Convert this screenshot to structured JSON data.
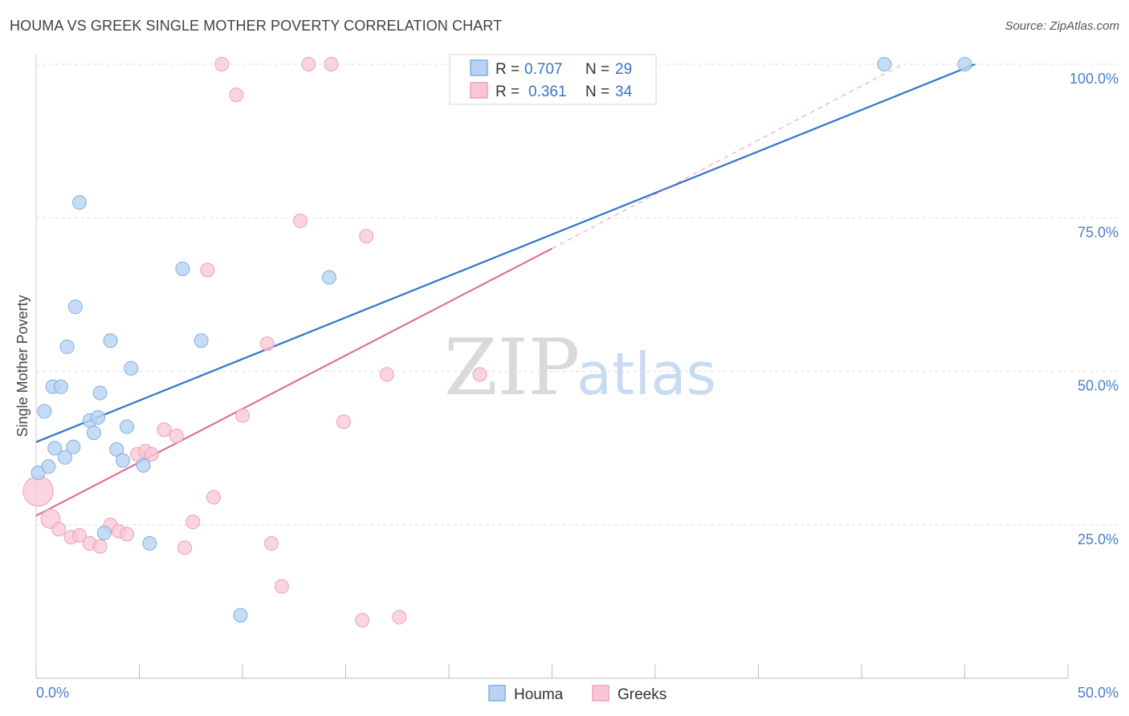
{
  "title": "HOUMA VS GREEK SINGLE MOTHER POVERTY CORRELATION CHART",
  "source": "Source: ZipAtlas.com",
  "watermark": {
    "zip": "ZIP",
    "atlas": "atlas"
  },
  "colors": {
    "houma_fill": "#b8d3f3",
    "houma_stroke": "#7eaee6",
    "houma_line": "#2f74cc",
    "greek_fill": "#f8c6d4",
    "greek_stroke": "#eea0b8",
    "greek_line": "#e0709a",
    "grid": "#dddddd",
    "tick_text": "#4a7fc9"
  },
  "legend": {
    "rows": [
      {
        "r_label": "R =",
        "r_value": "0.707",
        "n_label": "N =",
        "n_value": "29"
      },
      {
        "r_label": "R =",
        "r_value": "0.361",
        "n_label": "N =",
        "n_value": "34"
      }
    ]
  },
  "bottom_legend": [
    "Houma",
    "Greeks"
  ],
  "chart_data": {
    "type": "scatter",
    "title": "HOUMA VS GREEK SINGLE MOTHER POVERTY CORRELATION CHART",
    "xlabel": "",
    "ylabel": "Single Mother Poverty",
    "xlim": [
      0,
      50
    ],
    "ylim": [
      0,
      105
    ],
    "x_tick_labels": [
      "0.0%",
      "50.0%"
    ],
    "y_ticks": [
      25,
      50,
      75,
      100
    ],
    "y_tick_labels": [
      "25.0%",
      "50.0%",
      "75.0%",
      "100.0%"
    ],
    "grid": true,
    "series": [
      {
        "name": "Houma",
        "points": [
          [
            0.1,
            33.5
          ],
          [
            0.4,
            43.5
          ],
          [
            0.6,
            34.5
          ],
          [
            0.8,
            47.5
          ],
          [
            0.9,
            37.5
          ],
          [
            1.2,
            47.5
          ],
          [
            1.4,
            36.0
          ],
          [
            1.5,
            54.0
          ],
          [
            1.8,
            37.7
          ],
          [
            1.9,
            60.5
          ],
          [
            2.1,
            77.5
          ],
          [
            2.6,
            42.0
          ],
          [
            2.8,
            40.0
          ],
          [
            3.0,
            42.5
          ],
          [
            3.1,
            46.5
          ],
          [
            3.3,
            23.7
          ],
          [
            3.6,
            55.0
          ],
          [
            3.9,
            37.3
          ],
          [
            4.2,
            35.5
          ],
          [
            4.4,
            41.0
          ],
          [
            4.6,
            50.5
          ],
          [
            5.2,
            34.7
          ],
          [
            5.5,
            22.0
          ],
          [
            7.1,
            66.7
          ],
          [
            8.0,
            55.0
          ],
          [
            9.9,
            10.3
          ],
          [
            14.2,
            65.3
          ],
          [
            41.1,
            100.0
          ],
          [
            45.0,
            100.0
          ]
        ],
        "trend": {
          "x1": 0,
          "y1": 38.5,
          "x2": 45.5,
          "y2": 100.0
        }
      },
      {
        "name": "Greeks",
        "points": [
          [
            0.1,
            30.5
          ],
          [
            0.7,
            26.0
          ],
          [
            1.1,
            24.3
          ],
          [
            1.7,
            23.0
          ],
          [
            2.1,
            23.3
          ],
          [
            2.6,
            22.0
          ],
          [
            3.1,
            21.5
          ],
          [
            3.6,
            25.0
          ],
          [
            4.0,
            24.0
          ],
          [
            4.4,
            23.5
          ],
          [
            4.9,
            36.5
          ],
          [
            5.3,
            37.0
          ],
          [
            5.6,
            36.5
          ],
          [
            6.2,
            40.5
          ],
          [
            6.8,
            39.5
          ],
          [
            7.2,
            21.3
          ],
          [
            7.6,
            25.5
          ],
          [
            8.3,
            66.5
          ],
          [
            8.6,
            29.5
          ],
          [
            9.0,
            100.0
          ],
          [
            9.7,
            95.0
          ],
          [
            10.0,
            42.8
          ],
          [
            11.2,
            54.5
          ],
          [
            11.4,
            22.0
          ],
          [
            11.9,
            15.0
          ],
          [
            12.8,
            74.5
          ],
          [
            13.2,
            100.0
          ],
          [
            14.3,
            100.0
          ],
          [
            14.9,
            41.8
          ],
          [
            15.8,
            9.5
          ],
          [
            16.0,
            72.0
          ],
          [
            17.0,
            49.5
          ],
          [
            17.6,
            10.0
          ],
          [
            21.5,
            49.5
          ]
        ],
        "point_sizes": {
          "0": 2.2,
          "1": 1.4
        },
        "trend": {
          "x1": 0,
          "y1": 26.5,
          "x2": 25.0,
          "y2": 70.0
        },
        "trend_extension": {
          "x1": 25.0,
          "y1": 70.0,
          "x2": 42.0,
          "y2": 100.0
        }
      }
    ]
  }
}
